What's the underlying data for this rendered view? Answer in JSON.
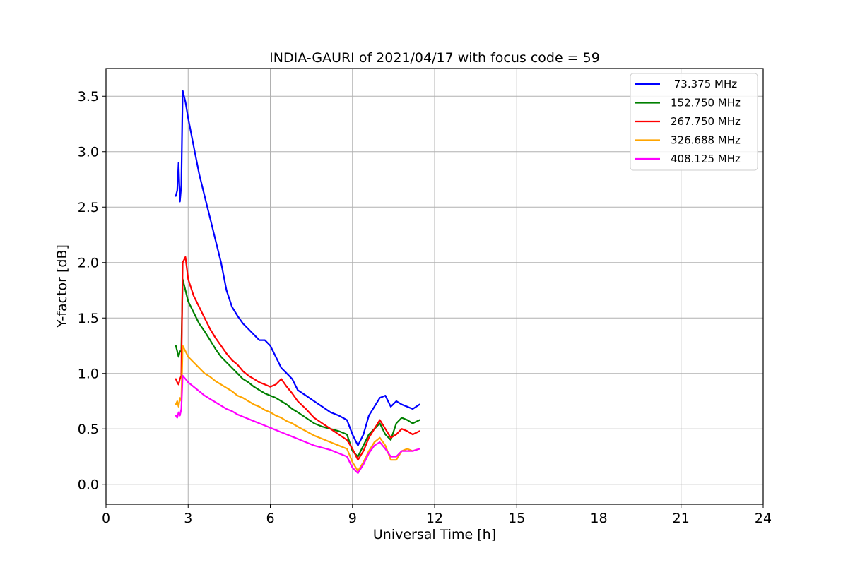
{
  "chart_data": {
    "type": "line",
    "title": "INDIA-GAURI of 2021/04/17 with focus code = 59",
    "xlabel": "Universal Time [h]",
    "ylabel": "Y-factor [dB]",
    "xlim": [
      0,
      24
    ],
    "ylim": [
      -0.18,
      3.75
    ],
    "xticks": [
      0,
      3,
      6,
      9,
      12,
      15,
      18,
      21,
      24
    ],
    "yticks": [
      0.0,
      0.5,
      1.0,
      1.5,
      2.0,
      2.5,
      3.0,
      3.5
    ],
    "xtick_labels": [
      "0",
      "3",
      "6",
      "9",
      "12",
      "15",
      "18",
      "21",
      "24"
    ],
    "ytick_labels": [
      "0.0",
      "0.5",
      "1.0",
      "1.5",
      "2.0",
      "2.5",
      "3.0",
      "3.5"
    ],
    "grid": true,
    "legend_position": "top-right",
    "series": [
      {
        "name": " 73.375 MHz",
        "color": "#0000ff",
        "x": [
          2.55,
          2.6,
          2.65,
          2.7,
          2.75,
          2.8,
          2.9,
          3.0,
          3.2,
          3.4,
          3.6,
          3.8,
          4.0,
          4.2,
          4.4,
          4.6,
          4.8,
          5.0,
          5.2,
          5.4,
          5.6,
          5.8,
          6.0,
          6.2,
          6.4,
          6.6,
          6.8,
          7.0,
          7.3,
          7.6,
          7.9,
          8.2,
          8.5,
          8.8,
          9.0,
          9.2,
          9.4,
          9.6,
          9.8,
          10.0,
          10.2,
          10.4,
          10.6,
          10.8,
          11.0,
          11.2,
          11.45
        ],
        "y": [
          2.6,
          2.65,
          2.9,
          2.55,
          2.7,
          3.55,
          3.45,
          3.3,
          3.05,
          2.8,
          2.6,
          2.4,
          2.2,
          2.0,
          1.75,
          1.6,
          1.52,
          1.45,
          1.4,
          1.35,
          1.3,
          1.3,
          1.25,
          1.15,
          1.05,
          1.0,
          0.95,
          0.85,
          0.8,
          0.75,
          0.7,
          0.65,
          0.62,
          0.58,
          0.45,
          0.35,
          0.45,
          0.62,
          0.7,
          0.78,
          0.8,
          0.7,
          0.75,
          0.72,
          0.7,
          0.68,
          0.72
        ]
      },
      {
        "name": "152.750 MHz",
        "color": "#008000",
        "x": [
          2.55,
          2.6,
          2.65,
          2.7,
          2.75,
          2.8,
          2.9,
          3.0,
          3.2,
          3.4,
          3.6,
          3.8,
          4.0,
          4.2,
          4.4,
          4.6,
          4.8,
          5.0,
          5.2,
          5.4,
          5.6,
          5.8,
          6.0,
          6.2,
          6.4,
          6.6,
          6.8,
          7.0,
          7.3,
          7.6,
          7.9,
          8.2,
          8.5,
          8.8,
          9.0,
          9.2,
          9.4,
          9.6,
          9.8,
          10.0,
          10.2,
          10.4,
          10.6,
          10.8,
          11.0,
          11.2,
          11.45
        ],
        "y": [
          1.25,
          1.2,
          1.15,
          1.2,
          1.2,
          1.85,
          1.75,
          1.65,
          1.55,
          1.45,
          1.38,
          1.3,
          1.22,
          1.15,
          1.1,
          1.05,
          1.0,
          0.95,
          0.92,
          0.88,
          0.85,
          0.82,
          0.8,
          0.78,
          0.75,
          0.72,
          0.68,
          0.65,
          0.6,
          0.55,
          0.52,
          0.5,
          0.48,
          0.45,
          0.3,
          0.25,
          0.35,
          0.45,
          0.5,
          0.55,
          0.45,
          0.4,
          0.55,
          0.6,
          0.58,
          0.55,
          0.58
        ]
      },
      {
        "name": "267.750 MHz",
        "color": "#ff0000",
        "x": [
          2.55,
          2.6,
          2.65,
          2.7,
          2.75,
          2.8,
          2.9,
          3.0,
          3.2,
          3.4,
          3.6,
          3.8,
          4.0,
          4.2,
          4.4,
          4.6,
          4.8,
          5.0,
          5.2,
          5.4,
          5.6,
          5.8,
          6.0,
          6.2,
          6.4,
          6.6,
          6.8,
          7.0,
          7.3,
          7.6,
          7.9,
          8.2,
          8.5,
          8.8,
          9.0,
          9.2,
          9.4,
          9.6,
          9.8,
          10.0,
          10.2,
          10.4,
          10.6,
          10.8,
          11.0,
          11.2,
          11.45
        ],
        "y": [
          0.95,
          0.92,
          0.9,
          0.95,
          0.98,
          2.0,
          2.05,
          1.85,
          1.7,
          1.6,
          1.5,
          1.4,
          1.32,
          1.25,
          1.18,
          1.12,
          1.08,
          1.02,
          0.98,
          0.95,
          0.92,
          0.9,
          0.88,
          0.9,
          0.95,
          0.88,
          0.82,
          0.75,
          0.68,
          0.6,
          0.55,
          0.5,
          0.45,
          0.4,
          0.32,
          0.22,
          0.3,
          0.42,
          0.5,
          0.58,
          0.5,
          0.42,
          0.45,
          0.5,
          0.48,
          0.45,
          0.48
        ]
      },
      {
        "name": "326.688 MHz",
        "color": "#ffa500",
        "x": [
          2.55,
          2.6,
          2.65,
          2.7,
          2.75,
          2.8,
          2.9,
          3.0,
          3.2,
          3.4,
          3.6,
          3.8,
          4.0,
          4.2,
          4.4,
          4.6,
          4.8,
          5.0,
          5.2,
          5.4,
          5.6,
          5.8,
          6.0,
          6.2,
          6.4,
          6.6,
          6.8,
          7.0,
          7.3,
          7.6,
          7.9,
          8.2,
          8.5,
          8.8,
          9.0,
          9.2,
          9.4,
          9.6,
          9.8,
          10.0,
          10.2,
          10.4,
          10.6,
          10.8,
          11.0,
          11.2,
          11.45
        ],
        "y": [
          0.72,
          0.75,
          0.7,
          0.78,
          0.75,
          1.25,
          1.2,
          1.15,
          1.1,
          1.05,
          1.0,
          0.97,
          0.93,
          0.9,
          0.87,
          0.84,
          0.8,
          0.78,
          0.75,
          0.72,
          0.7,
          0.67,
          0.65,
          0.62,
          0.6,
          0.57,
          0.55,
          0.52,
          0.48,
          0.44,
          0.41,
          0.38,
          0.35,
          0.32,
          0.2,
          0.12,
          0.2,
          0.3,
          0.38,
          0.42,
          0.35,
          0.22,
          0.22,
          0.3,
          0.32,
          0.3,
          0.32
        ]
      },
      {
        "name": "408.125 MHz",
        "color": "#ff00ff",
        "x": [
          2.55,
          2.6,
          2.65,
          2.7,
          2.75,
          2.8,
          2.9,
          3.0,
          3.2,
          3.4,
          3.6,
          3.8,
          4.0,
          4.2,
          4.4,
          4.6,
          4.8,
          5.0,
          5.2,
          5.4,
          5.6,
          5.8,
          6.0,
          6.2,
          6.4,
          6.6,
          6.8,
          7.0,
          7.3,
          7.6,
          7.9,
          8.2,
          8.5,
          8.8,
          9.0,
          9.2,
          9.4,
          9.6,
          9.8,
          10.0,
          10.2,
          10.4,
          10.6,
          10.8,
          11.0,
          11.2,
          11.45
        ],
        "y": [
          0.62,
          0.6,
          0.65,
          0.62,
          0.68,
          0.98,
          0.95,
          0.92,
          0.88,
          0.84,
          0.8,
          0.77,
          0.74,
          0.71,
          0.68,
          0.66,
          0.63,
          0.61,
          0.59,
          0.57,
          0.55,
          0.53,
          0.51,
          0.49,
          0.47,
          0.45,
          0.43,
          0.41,
          0.38,
          0.35,
          0.33,
          0.31,
          0.28,
          0.25,
          0.15,
          0.1,
          0.18,
          0.28,
          0.35,
          0.38,
          0.32,
          0.25,
          0.25,
          0.3,
          0.3,
          0.3,
          0.32
        ]
      }
    ]
  }
}
